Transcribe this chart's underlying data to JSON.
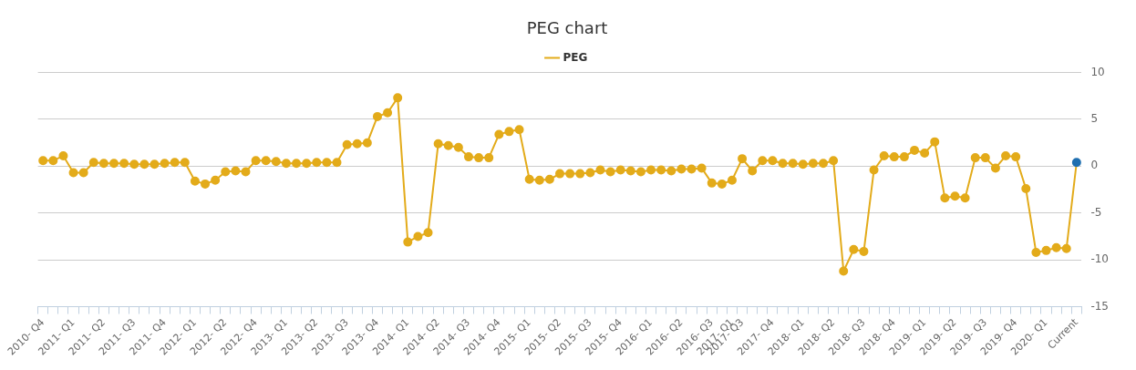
{
  "chart_data": {
    "type": "line",
    "title": "PEG chart",
    "categories": [
      "2010- Q4",
      null,
      null,
      "2011- Q1",
      null,
      null,
      "2011- Q2",
      null,
      null,
      "2011- Q3",
      null,
      null,
      "2011- Q4",
      null,
      null,
      "2012- Q1",
      null,
      null,
      "2012- Q2",
      null,
      null,
      "2012- Q4",
      null,
      null,
      "2013- Q1",
      null,
      null,
      "2013- Q2",
      null,
      null,
      "2013- Q3",
      null,
      null,
      "2013- Q4",
      null,
      null,
      "2014- Q1",
      null,
      null,
      "2014- Q2",
      null,
      null,
      "2014- Q3",
      null,
      null,
      "2014- Q4",
      null,
      null,
      "2015- Q1",
      null,
      null,
      "2015- Q2",
      null,
      null,
      "2015- Q3",
      null,
      null,
      "2015- Q4",
      null,
      null,
      "2016- Q1",
      null,
      null,
      "2016- Q2",
      null,
      null,
      "2016- Q3",
      null,
      "2017- Q1",
      "2017- Q3",
      null,
      null,
      "2017- Q4",
      null,
      null,
      "2018- Q1",
      null,
      null,
      "2018- Q2",
      null,
      null,
      "2018- Q3",
      null,
      null,
      "2018- Q4",
      null,
      null,
      "2019- Q1",
      null,
      null,
      "2019- Q2",
      null,
      null,
      "2019- Q3",
      null,
      null,
      "2019- Q4",
      null,
      null,
      "2020- Q1",
      null,
      null,
      "Current"
    ],
    "series": [
      {
        "name": "PEG",
        "color": "#e3ab1a",
        "colors": [
          "#e3ab1a",
          "#e3ab1a",
          "#e3ab1a",
          "#e3ab1a",
          "#e3ab1a",
          "#e3ab1a",
          "#e3ab1a",
          "#e3ab1a",
          "#e3ab1a",
          "#e3ab1a",
          "#e3ab1a",
          "#e3ab1a",
          "#e3ab1a",
          "#e3ab1a",
          "#e3ab1a",
          "#e3ab1a",
          "#e3ab1a",
          "#e3ab1a",
          "#e3ab1a",
          "#e3ab1a",
          "#e3ab1a",
          "#e3ab1a",
          "#e3ab1a",
          "#e3ab1a",
          "#e3ab1a",
          "#e3ab1a",
          "#e3ab1a",
          "#e3ab1a",
          "#e3ab1a",
          "#e3ab1a",
          "#e3ab1a",
          "#e3ab1a",
          "#e3ab1a",
          "#e3ab1a",
          "#e3ab1a",
          "#e3ab1a",
          "#e3ab1a",
          "#e3ab1a",
          "#e3ab1a",
          "#e3ab1a",
          "#e3ab1a",
          "#e3ab1a",
          "#e3ab1a",
          "#e3ab1a",
          "#e3ab1a",
          "#e3ab1a",
          "#e3ab1a",
          "#e3ab1a",
          "#e3ab1a",
          "#e3ab1a",
          "#e3ab1a",
          "#e3ab1a",
          "#e3ab1a",
          "#e3ab1a",
          "#e3ab1a",
          "#e3ab1a",
          "#e3ab1a",
          "#e3ab1a",
          "#e3ab1a",
          "#e3ab1a",
          "#e3ab1a",
          "#e3ab1a",
          "#e3ab1a",
          "#e3ab1a",
          "#e3ab1a",
          "#e3ab1a",
          "#e3ab1a",
          "#e3ab1a",
          "#e3ab1a",
          "#e3ab1a",
          "#e3ab1a",
          "#e3ab1a",
          "#e3ab1a",
          "#e3ab1a",
          "#e3ab1a",
          "#e3ab1a",
          "#e3ab1a",
          "#e3ab1a",
          "#e3ab1a",
          "#e3ab1a",
          "#e3ab1a",
          "#e3ab1a",
          "#e3ab1a",
          "#e3ab1a",
          "#e3ab1a",
          "#e3ab1a",
          "#e3ab1a",
          "#e3ab1a",
          "#e3ab1a",
          "#e3ab1a",
          "#e3ab1a",
          "#e3ab1a",
          "#e3ab1a",
          "#e3ab1a",
          "#e3ab1a",
          "#e3ab1a",
          "#e3ab1a",
          "#e3ab1a",
          "#e3ab1a",
          "#e3ab1a",
          "#e3ab1a",
          "#e3ab1a",
          "#1f6fb0"
        ],
        "values": [
          0.6,
          0.6,
          1.1,
          -0.7,
          -0.7,
          0.4,
          0.3,
          0.3,
          0.3,
          0.2,
          0.2,
          0.2,
          0.3,
          0.4,
          0.4,
          -1.6,
          -1.9,
          -1.5,
          -0.6,
          -0.5,
          -0.6,
          0.6,
          0.6,
          0.5,
          0.3,
          0.3,
          0.3,
          0.4,
          0.4,
          0.4,
          2.3,
          2.4,
          2.5,
          5.3,
          5.7,
          7.3,
          -8.1,
          -7.5,
          -7.1,
          2.4,
          2.2,
          2.0,
          1.0,
          0.9,
          0.9,
          3.4,
          3.7,
          3.9,
          -1.4,
          -1.5,
          -1.4,
          -0.8,
          -0.8,
          -0.8,
          -0.7,
          -0.4,
          -0.6,
          -0.4,
          -0.5,
          -0.6,
          -0.4,
          -0.4,
          -0.5,
          -0.3,
          -0.3,
          -0.2,
          -1.8,
          -1.9,
          -1.5,
          0.8,
          -0.5,
          0.6,
          0.6,
          0.3,
          0.3,
          0.2,
          0.3,
          0.3,
          0.6,
          -11.2,
          -8.9,
          -9.1,
          -0.4,
          1.1,
          1.0,
          1.0,
          1.7,
          1.4,
          2.6,
          -3.4,
          -3.2,
          -3.4,
          0.9,
          0.9,
          -0.2,
          1.1,
          1.0,
          -2.4,
          -9.2,
          -9.0,
          -8.7,
          -8.8,
          0.4
        ]
      }
    ],
    "ylim": [
      -15,
      10
    ],
    "yticks": [
      -15,
      -10,
      -5,
      0,
      5,
      10
    ],
    "grid": "y",
    "legend": "top",
    "marker": "circle",
    "line_style": "solid"
  }
}
